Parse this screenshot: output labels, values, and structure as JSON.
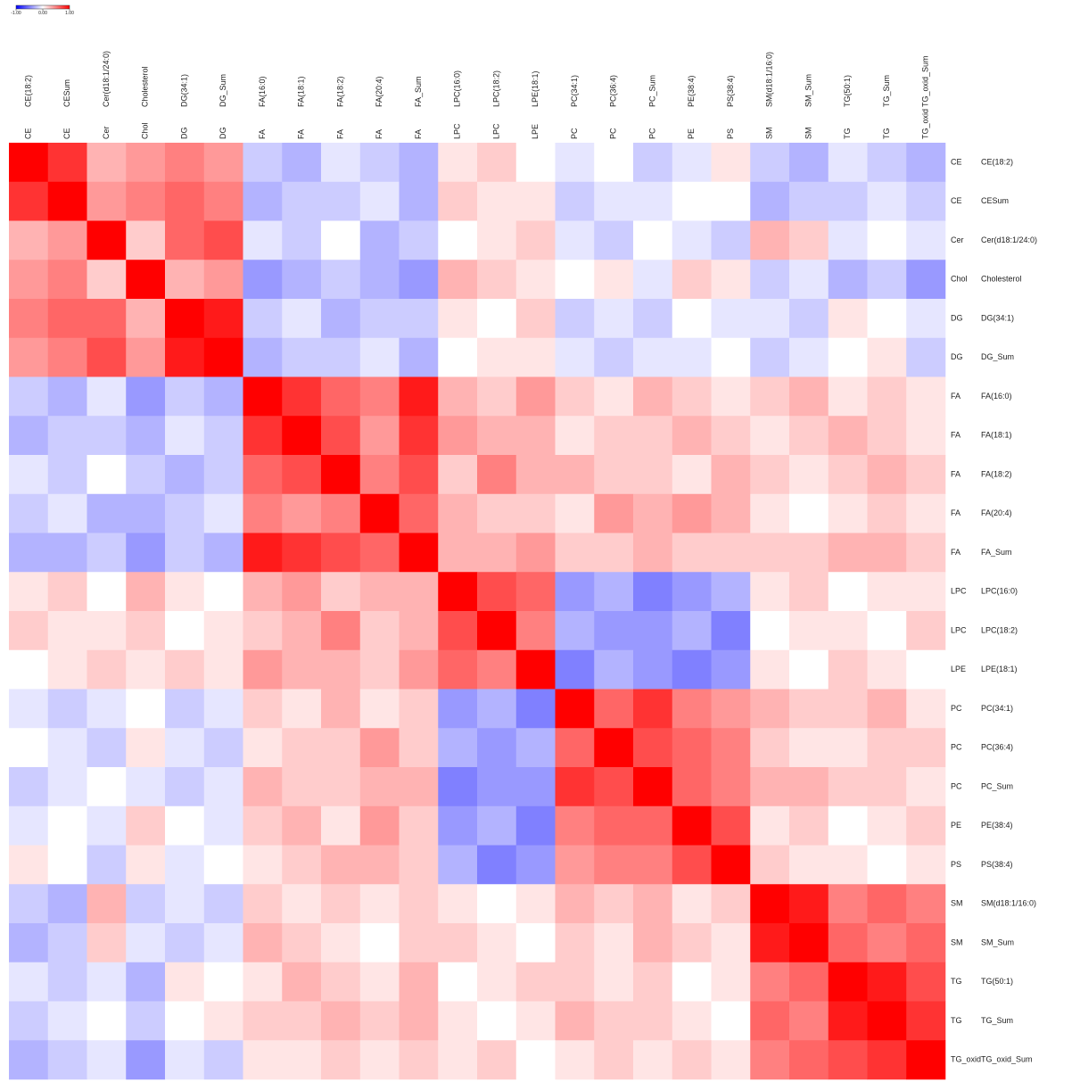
{
  "chart_data": {
    "type": "heatmap",
    "classes": [
      "CE",
      "CE",
      "Cer",
      "Chol",
      "DG",
      "DG",
      "FA",
      "FA",
      "FA",
      "FA",
      "FA",
      "LPC",
      "LPC",
      "LPE",
      "PC",
      "PC",
      "PC",
      "PE",
      "PS",
      "SM",
      "SM",
      "TG",
      "TG",
      "TG_oxid"
    ],
    "categories": [
      "CE(18:2)",
      "CESum",
      "Cer(d18:1/24:0)",
      "Cholesterol",
      "DG(34:1)",
      "DG_Sum",
      "FA(16:0)",
      "FA(18:1)",
      "FA(18:2)",
      "FA(20:4)",
      "FA_Sum",
      "LPC(16:0)",
      "LPC(18:2)",
      "LPE(18:1)",
      "PC(34:1)",
      "PC(36:4)",
      "PC_Sum",
      "PE(38:4)",
      "PS(38:4)",
      "SM(d18:1/16:0)",
      "SM_Sum",
      "TG(50:1)",
      "TG_Sum",
      "TG_oxid_Sum"
    ],
    "values": [
      [
        1,
        0.8,
        0.3,
        0.4,
        0.5,
        0.4,
        -0.2,
        -0.3,
        -0.1,
        -0.2,
        -0.3,
        0.1,
        0.2,
        0,
        -0.1,
        0,
        -0.2,
        -0.1,
        0.1,
        -0.2,
        -0.3,
        -0.1,
        -0.2,
        -0.3
      ],
      [
        0.8,
        1,
        0.4,
        0.5,
        0.6,
        0.5,
        -0.3,
        -0.2,
        -0.2,
        -0.1,
        -0.3,
        0.2,
        0.1,
        0.1,
        -0.2,
        -0.1,
        -0.1,
        0,
        0,
        -0.3,
        -0.2,
        -0.2,
        -0.1,
        -0.2
      ],
      [
        0.3,
        0.4,
        1,
        0.2,
        0.6,
        0.7,
        -0.1,
        -0.2,
        0,
        -0.3,
        -0.2,
        0,
        0.1,
        0.2,
        -0.1,
        -0.2,
        0,
        -0.1,
        -0.2,
        0.3,
        0.2,
        -0.1,
        0,
        -0.1
      ],
      [
        0.4,
        0.5,
        0.2,
        1,
        0.3,
        0.4,
        -0.4,
        -0.3,
        -0.2,
        -0.3,
        -0.4,
        0.3,
        0.2,
        0.1,
        0,
        0.1,
        -0.1,
        0.2,
        0.1,
        -0.2,
        -0.1,
        -0.3,
        -0.2,
        -0.4
      ],
      [
        0.5,
        0.6,
        0.6,
        0.3,
        1,
        0.9,
        -0.2,
        -0.1,
        -0.3,
        -0.2,
        -0.2,
        0.1,
        0,
        0.2,
        -0.2,
        -0.1,
        -0.2,
        0,
        -0.1,
        -0.1,
        -0.2,
        0.1,
        0,
        -0.1
      ],
      [
        0.4,
        0.5,
        0.7,
        0.4,
        0.9,
        1,
        -0.3,
        -0.2,
        -0.2,
        -0.1,
        -0.3,
        0,
        0.1,
        0.1,
        -0.1,
        -0.2,
        -0.1,
        -0.1,
        0,
        -0.2,
        -0.1,
        0,
        0.1,
        -0.2
      ],
      [
        -0.2,
        -0.3,
        -0.1,
        -0.4,
        -0.2,
        -0.3,
        1,
        0.8,
        0.6,
        0.5,
        0.9,
        0.3,
        0.2,
        0.4,
        0.2,
        0.1,
        0.3,
        0.2,
        0.1,
        0.2,
        0.3,
        0.1,
        0.2,
        0.1
      ],
      [
        -0.3,
        -0.2,
        -0.2,
        -0.3,
        -0.1,
        -0.2,
        0.8,
        1,
        0.7,
        0.4,
        0.8,
        0.4,
        0.3,
        0.3,
        0.1,
        0.2,
        0.2,
        0.3,
        0.2,
        0.1,
        0.2,
        0.3,
        0.2,
        0.1
      ],
      [
        -0.1,
        -0.2,
        0,
        -0.2,
        -0.3,
        -0.2,
        0.6,
        0.7,
        1,
        0.5,
        0.7,
        0.2,
        0.5,
        0.3,
        0.3,
        0.2,
        0.2,
        0.1,
        0.3,
        0.2,
        0.1,
        0.2,
        0.3,
        0.2
      ],
      [
        -0.2,
        -0.1,
        -0.3,
        -0.3,
        -0.2,
        -0.1,
        0.5,
        0.4,
        0.5,
        1,
        0.6,
        0.3,
        0.2,
        0.2,
        0.1,
        0.4,
        0.3,
        0.4,
        0.3,
        0.1,
        0,
        0.1,
        0.2,
        0.1
      ],
      [
        -0.3,
        -0.3,
        -0.2,
        -0.4,
        -0.2,
        -0.3,
        0.9,
        0.8,
        0.7,
        0.6,
        1,
        0.3,
        0.3,
        0.4,
        0.2,
        0.2,
        0.3,
        0.2,
        0.2,
        0.2,
        0.2,
        0.3,
        0.3,
        0.2
      ],
      [
        0.1,
        0.2,
        0,
        0.3,
        0.1,
        0,
        0.3,
        0.4,
        0.2,
        0.3,
        0.3,
        1,
        0.7,
        0.6,
        -0.4,
        -0.3,
        -0.5,
        -0.4,
        -0.3,
        0.1,
        0.2,
        0,
        0.1,
        0.1
      ],
      [
        0.2,
        0.1,
        0.1,
        0.2,
        0,
        0.1,
        0.2,
        0.3,
        0.5,
        0.2,
        0.3,
        0.7,
        1,
        0.5,
        -0.3,
        -0.4,
        -0.4,
        -0.3,
        -0.5,
        0,
        0.1,
        0.1,
        0,
        0.2
      ],
      [
        0,
        0.1,
        0.2,
        0.1,
        0.2,
        0.1,
        0.4,
        0.3,
        0.3,
        0.2,
        0.4,
        0.6,
        0.5,
        1,
        -0.5,
        -0.3,
        -0.4,
        -0.5,
        -0.4,
        0.1,
        0,
        0.2,
        0.1,
        0
      ],
      [
        -0.1,
        -0.2,
        -0.1,
        0,
        -0.2,
        -0.1,
        0.2,
        0.1,
        0.3,
        0.1,
        0.2,
        -0.4,
        -0.3,
        -0.5,
        1,
        0.6,
        0.8,
        0.5,
        0.4,
        0.3,
        0.2,
        0.2,
        0.3,
        0.1
      ],
      [
        0,
        -0.1,
        -0.2,
        0.1,
        -0.1,
        -0.2,
        0.1,
        0.2,
        0.2,
        0.4,
        0.2,
        -0.3,
        -0.4,
        -0.3,
        0.6,
        1,
        0.7,
        0.6,
        0.5,
        0.2,
        0.1,
        0.1,
        0.2,
        0.2
      ],
      [
        -0.2,
        -0.1,
        0,
        -0.1,
        -0.2,
        -0.1,
        0.3,
        0.2,
        0.2,
        0.3,
        0.3,
        -0.5,
        -0.4,
        -0.4,
        0.8,
        0.7,
        1,
        0.6,
        0.5,
        0.3,
        0.3,
        0.2,
        0.2,
        0.1
      ],
      [
        -0.1,
        0,
        -0.1,
        0.2,
        0,
        -0.1,
        0.2,
        0.3,
        0.1,
        0.4,
        0.2,
        -0.4,
        -0.3,
        -0.5,
        0.5,
        0.6,
        0.6,
        1,
        0.7,
        0.1,
        0.2,
        0,
        0.1,
        0.2
      ],
      [
        0.1,
        0,
        -0.2,
        0.1,
        -0.1,
        0,
        0.1,
        0.2,
        0.3,
        0.3,
        0.2,
        -0.3,
        -0.5,
        -0.4,
        0.4,
        0.5,
        0.5,
        0.7,
        1,
        0.2,
        0.1,
        0.1,
        0,
        0.1
      ],
      [
        -0.2,
        -0.3,
        0.3,
        -0.2,
        -0.1,
        -0.2,
        0.2,
        0.1,
        0.2,
        0.1,
        0.2,
        0.1,
        0,
        0.1,
        0.3,
        0.2,
        0.3,
        0.1,
        0.2,
        1,
        0.9,
        0.5,
        0.6,
        0.5
      ],
      [
        -0.3,
        -0.2,
        0.2,
        -0.1,
        -0.2,
        -0.1,
        0.3,
        0.2,
        0.1,
        0,
        0.2,
        0.2,
        0.1,
        0,
        0.2,
        0.1,
        0.3,
        0.2,
        0.1,
        0.9,
        1,
        0.6,
        0.5,
        0.6
      ],
      [
        -0.1,
        -0.2,
        -0.1,
        -0.3,
        0.1,
        0,
        0.1,
        0.3,
        0.2,
        0.1,
        0.3,
        0,
        0.1,
        0.2,
        0.2,
        0.1,
        0.2,
        0,
        0.1,
        0.5,
        0.6,
        1,
        0.9,
        0.7
      ],
      [
        -0.2,
        -0.1,
        0,
        -0.2,
        0,
        0.1,
        0.2,
        0.2,
        0.3,
        0.2,
        0.3,
        0.1,
        0,
        0.1,
        0.3,
        0.2,
        0.2,
        0.1,
        0,
        0.6,
        0.5,
        0.9,
        1,
        0.8
      ],
      [
        -0.3,
        -0.2,
        -0.1,
        -0.4,
        -0.1,
        -0.2,
        0.1,
        0.1,
        0.2,
        0.1,
        0.2,
        0.1,
        0.2,
        0,
        0.1,
        0.2,
        0.1,
        0.2,
        0.1,
        0.5,
        0.6,
        0.7,
        0.8,
        1
      ]
    ],
    "colormap": [
      "#0000ff",
      "#ffffff",
      "#ff0000"
    ],
    "clim": [
      -1,
      1
    ],
    "colorbar_ticks": [
      {
        "value": -1,
        "label": "-1.00"
      },
      {
        "value": 0,
        "label": "0.00"
      },
      {
        "value": 1,
        "label": "1.00"
      }
    ]
  }
}
